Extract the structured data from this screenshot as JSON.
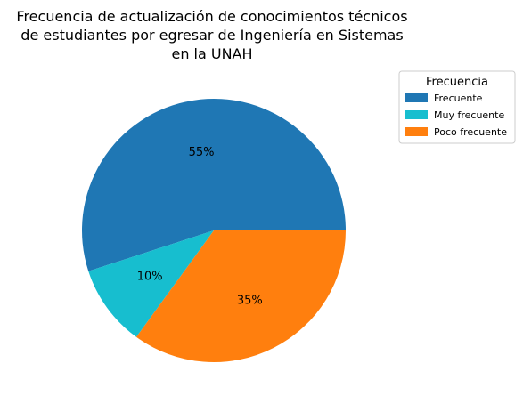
{
  "chart_data": {
    "type": "pie",
    "title_lines": [
      "Frecuencia de actualización de conocimientos técnicos",
      "de estudiantes por egresar de Ingeniería en Sistemas",
      "en la UNAH"
    ],
    "legend": {
      "title": "Frecuencia",
      "placement": "upper-right outside"
    },
    "slices": [
      {
        "label": "Frecuente",
        "value": 55,
        "pct_label": "55%",
        "color": "#1f77b4"
      },
      {
        "label": "Muy frecuente",
        "value": 10,
        "pct_label": "10%",
        "color": "#17becf"
      },
      {
        "label": "Poco frecuente",
        "value": 35,
        "pct_label": "35%",
        "color": "#ff7f0e"
      }
    ],
    "start_angle_deg": 0,
    "direction": "counterclockwise"
  }
}
